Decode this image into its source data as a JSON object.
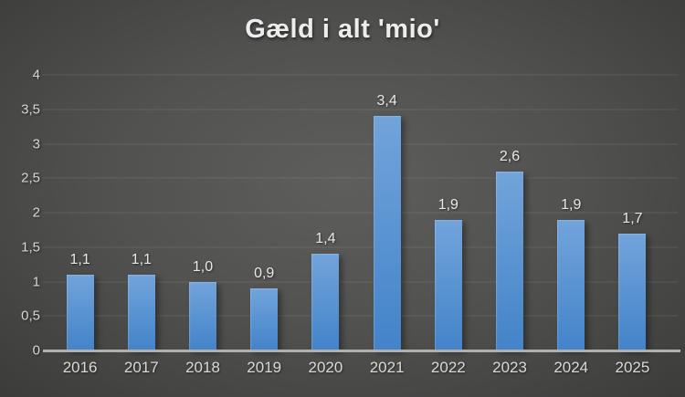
{
  "chart_data": {
    "type": "bar",
    "title": "Gæld i alt 'mio'",
    "categories": [
      "2016",
      "2017",
      "2018",
      "2019",
      "2020",
      "2021",
      "2022",
      "2023",
      "2024",
      "2025"
    ],
    "values": [
      1.1,
      1.1,
      1.0,
      0.9,
      1.4,
      3.4,
      1.9,
      2.6,
      1.9,
      1.7
    ],
    "value_labels": [
      "1,1",
      "1,1",
      "1,0",
      "0,9",
      "1,4",
      "3,4",
      "1,9",
      "2,6",
      "1,9",
      "1,7"
    ],
    "xlabel": "",
    "ylabel": "",
    "ylim": [
      0,
      4
    ],
    "y_ticks": [
      0,
      0.5,
      1,
      1.5,
      2,
      2.5,
      3,
      3.5,
      4
    ],
    "y_tick_labels": [
      "0",
      "0,5",
      "1",
      "1,5",
      "2",
      "2,5",
      "3",
      "3,5",
      "4"
    ],
    "grid": true,
    "legend": false,
    "colors": {
      "background_center": "#5e5e5c",
      "background_edge": "#242423",
      "bar_top": "#72a4db",
      "bar_bottom": "#4383c9",
      "gridline": "rgba(255,255,255,0.10)",
      "axis_line": "#b0b0b0",
      "label_text": "#e8e8e8",
      "title_text": "#ededed"
    }
  }
}
